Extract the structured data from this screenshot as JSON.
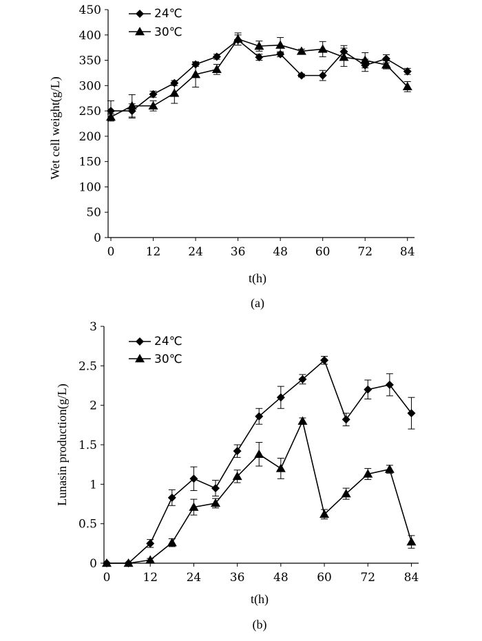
{
  "chart_data": [
    {
      "type": "line",
      "caption": "(a)",
      "xlabel": "t(h)",
      "ylabel": "Wet cell weight(g/L)",
      "xticks": [
        0,
        12,
        24,
        36,
        48,
        60,
        72,
        84
      ],
      "yticks": [
        0,
        50,
        100,
        150,
        200,
        250,
        300,
        350,
        400,
        450
      ],
      "xlim": [
        0,
        86
      ],
      "ylim": [
        0,
        450
      ],
      "legend_position": "top-left",
      "series": [
        {
          "name": "24℃",
          "marker": "diamond",
          "x": [
            0,
            6,
            12,
            18,
            24,
            30,
            36,
            42,
            48,
            54,
            60,
            66,
            72,
            78,
            84
          ],
          "y": [
            250,
            250,
            283,
            305,
            342,
            357,
            390,
            356,
            362,
            320,
            320,
            367,
            340,
            353,
            328
          ],
          "err": [
            20,
            14,
            6,
            5,
            4,
            5,
            10,
            6,
            5,
            3,
            10,
            12,
            12,
            8,
            6
          ]
        },
        {
          "name": "30℃",
          "marker": "triangle",
          "x": [
            0,
            6,
            12,
            18,
            24,
            30,
            36,
            42,
            48,
            54,
            60,
            66,
            72,
            78,
            84
          ],
          "y": [
            238,
            260,
            260,
            285,
            322,
            332,
            392,
            378,
            380,
            368,
            372,
            356,
            350,
            341,
            298
          ],
          "err": [
            6,
            22,
            10,
            20,
            25,
            10,
            12,
            10,
            15,
            4,
            15,
            18,
            15,
            8,
            10
          ]
        }
      ]
    },
    {
      "type": "line",
      "caption": "(b)",
      "xlabel": "t(h)",
      "ylabel": "Lunasin production(g/L)",
      "xticks": [
        0,
        12,
        24,
        36,
        48,
        60,
        72,
        84
      ],
      "yticks": [
        0,
        0.5,
        1,
        1.5,
        2,
        2.5,
        3
      ],
      "xlim": [
        0,
        86
      ],
      "ylim": [
        0,
        3
      ],
      "legend_position": "top-left",
      "series": [
        {
          "name": "24℃",
          "marker": "diamond",
          "x": [
            0,
            6,
            12,
            18,
            24,
            30,
            36,
            42,
            48,
            54,
            60,
            66,
            72,
            78,
            84
          ],
          "y": [
            0,
            0,
            0.25,
            0.83,
            1.07,
            0.95,
            1.42,
            1.86,
            2.1,
            2.33,
            2.57,
            1.82,
            2.2,
            2.26,
            1.9
          ],
          "err": [
            0,
            0,
            0.05,
            0.1,
            0.15,
            0.1,
            0.08,
            0.1,
            0.14,
            0.06,
            0.05,
            0.08,
            0.12,
            0.14,
            0.2
          ]
        },
        {
          "name": "30℃",
          "marker": "triangle",
          "x": [
            0,
            6,
            12,
            18,
            24,
            30,
            36,
            42,
            48,
            54,
            60,
            66,
            72,
            78,
            84
          ],
          "y": [
            0,
            0,
            0.04,
            0.26,
            0.71,
            0.76,
            1.1,
            1.38,
            1.2,
            1.8,
            0.62,
            0.88,
            1.13,
            1.19,
            0.27
          ],
          "err": [
            0,
            0,
            0.02,
            0.05,
            0.1,
            0.06,
            0.08,
            0.15,
            0.13,
            0.04,
            0.06,
            0.07,
            0.07,
            0.05,
            0.08
          ]
        }
      ]
    }
  ]
}
